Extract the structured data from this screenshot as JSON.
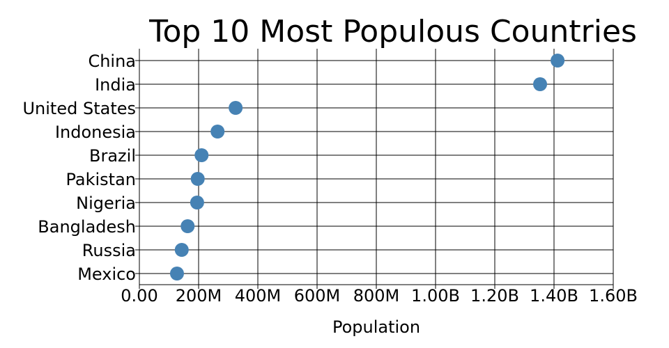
{
  "chart_data": {
    "type": "scatter",
    "title": "Top 10 Most Populous Countries",
    "xlabel": "Population",
    "ylabel": "",
    "categories": [
      "China",
      "India",
      "United States",
      "Indonesia",
      "Brazil",
      "Pakistan",
      "Nigeria",
      "Bangladesh",
      "Russia",
      "Mexico"
    ],
    "values": [
      1412000000,
      1353000000,
      325000000,
      264000000,
      210000000,
      197000000,
      195000000,
      163000000,
      143000000,
      127000000
    ],
    "xlim": [
      0,
      1600000000
    ],
    "xticks": [
      0,
      200000000,
      400000000,
      600000000,
      800000000,
      1000000000,
      1200000000,
      1400000000,
      1600000000
    ],
    "xtick_labels": [
      "0.00",
      "200M",
      "400M",
      "600M",
      "800M",
      "1.00B",
      "1.20B",
      "1.40B",
      "1.60B"
    ],
    "grid": true,
    "legend": "none",
    "marker_color": "#4682b4"
  }
}
